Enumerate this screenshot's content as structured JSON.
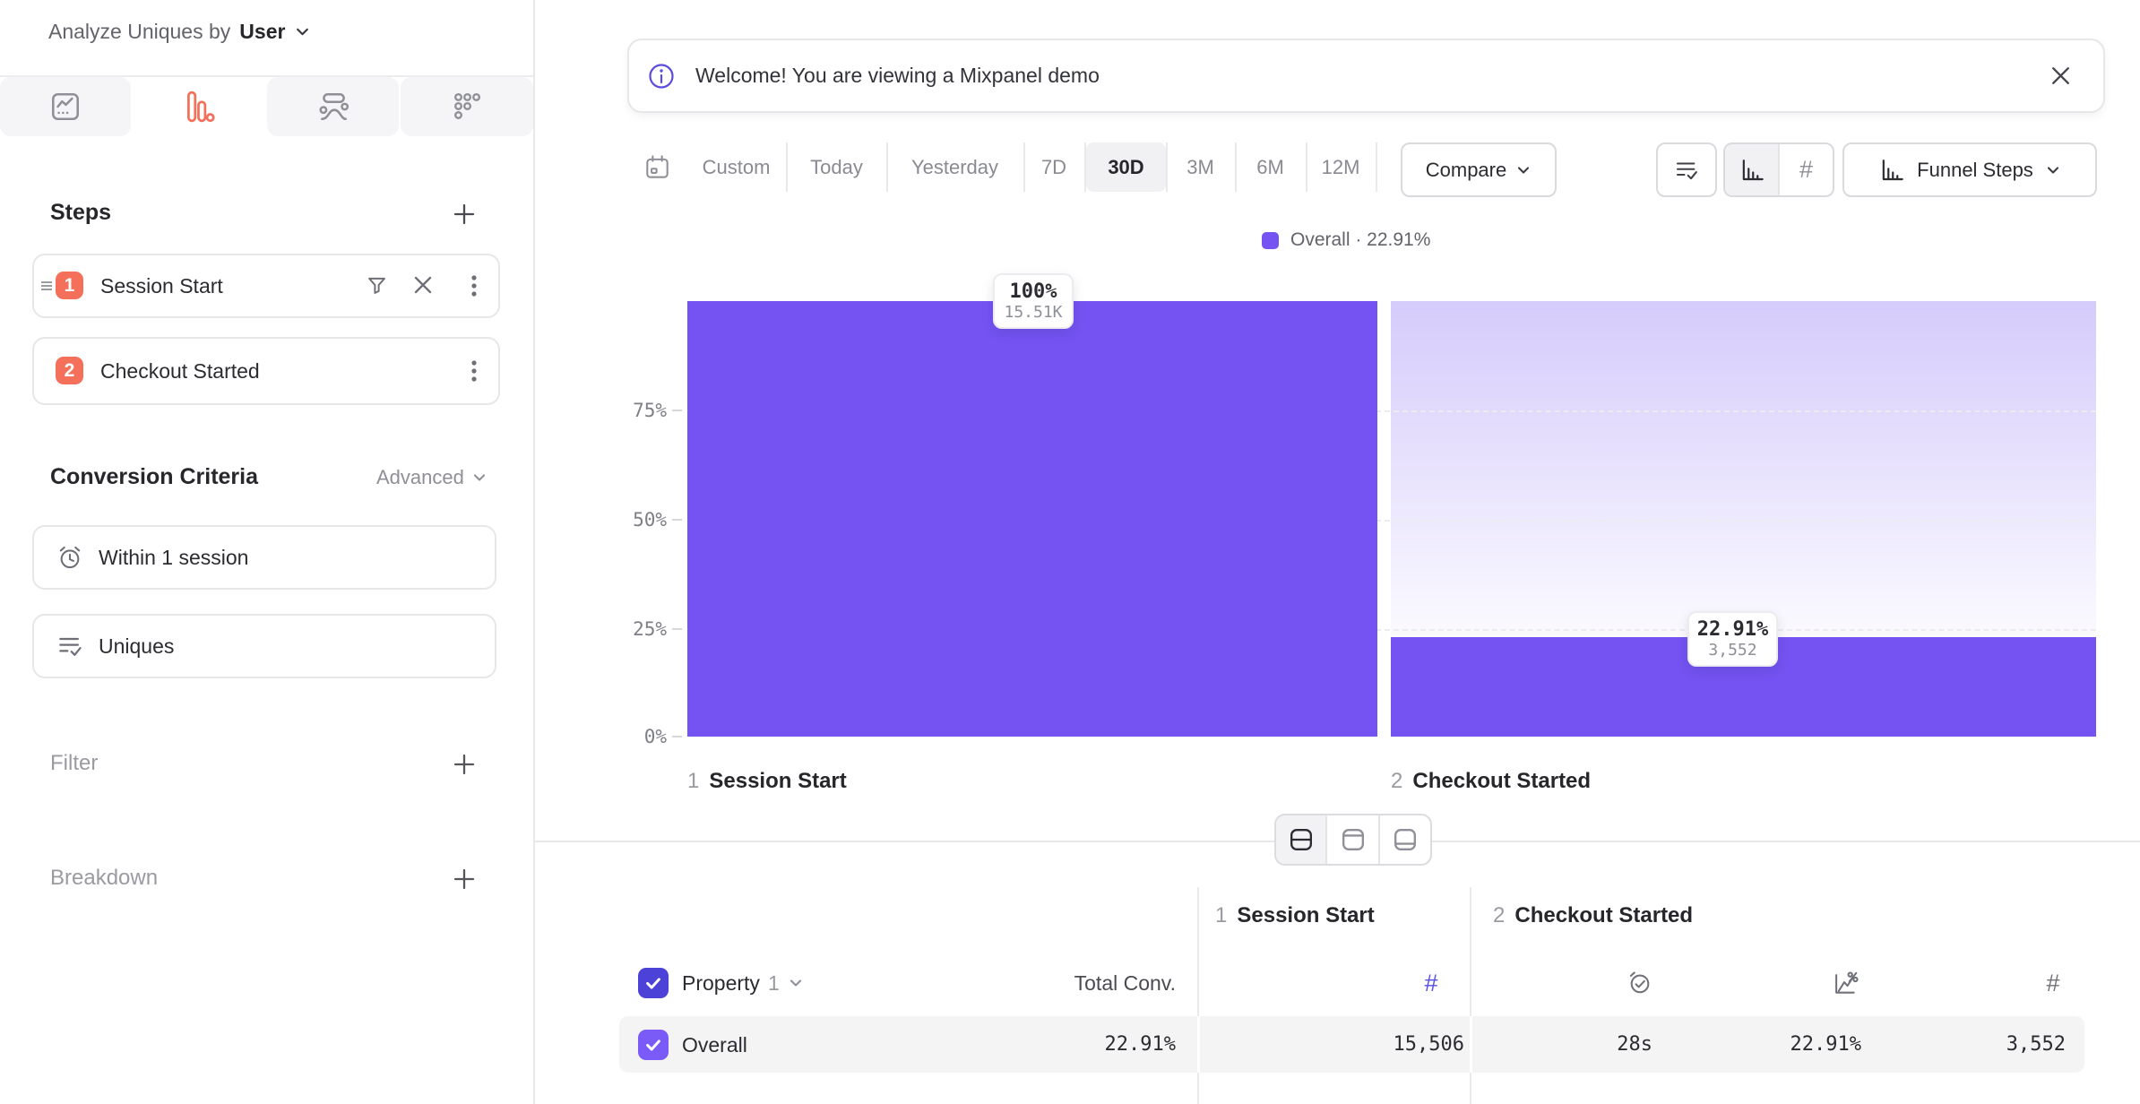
{
  "colors": {
    "purple": "#7453F2",
    "purple-checkbox": "#7B5BF8",
    "indigo-checkbox": "#4C42D8",
    "orange": "#F4705A",
    "info-purple": "#5B4BE0",
    "hash-active": "#564FE6",
    "row-bg": "#F4F4F5"
  },
  "sidebar": {
    "header": {
      "label": "Analyze Uniques by",
      "value": "User"
    },
    "steps": {
      "title": "Steps",
      "items": [
        {
          "index": "1",
          "label": "Session Start"
        },
        {
          "index": "2",
          "label": "Checkout Started"
        }
      ]
    },
    "conversion": {
      "title": "Conversion Criteria",
      "advanced": "Advanced",
      "window": "Within 1 session",
      "counting": "Uniques"
    },
    "filter": {
      "title": "Filter"
    },
    "breakdown": {
      "title": "Breakdown"
    }
  },
  "banner": {
    "message": "Welcome! You are viewing a Mixpanel demo"
  },
  "toolbar": {
    "ranges": [
      "Custom",
      "Today",
      "Yesterday",
      "7D",
      "30D",
      "3M",
      "6M",
      "12M"
    ],
    "selected_range": "30D",
    "compare": "Compare",
    "hash": "#",
    "view_label": "Funnel Steps"
  },
  "chart": {
    "legend": "Overall · 22.91%",
    "yticks": [
      "75%",
      "50%",
      "25%",
      "0%"
    ],
    "steps": [
      {
        "index": "1",
        "label": "Session Start",
        "pct": "100%",
        "count": "15.51K"
      },
      {
        "index": "2",
        "label": "Checkout Started",
        "pct": "22.91%",
        "count": "3,552"
      }
    ]
  },
  "chart_data": {
    "type": "bar",
    "title": "Funnel conversion by step",
    "categories": [
      "1 Session Start",
      "2 Checkout Started"
    ],
    "series": [
      {
        "name": "Overall",
        "values": [
          100,
          22.91
        ]
      }
    ],
    "counts": [
      15506,
      3552
    ],
    "count_labels": [
      "15.51K",
      "3,552"
    ],
    "overall_conversion": "22.91%",
    "ylim": [
      0,
      100
    ],
    "yticks": [
      0,
      25,
      50,
      75
    ],
    "grid": "dashed-horizontal",
    "legend_position": "top-center"
  },
  "table": {
    "groups": [
      {
        "index": "1",
        "label": "Session Start"
      },
      {
        "index": "2",
        "label": "Checkout Started"
      }
    ],
    "property_label": "Property",
    "property_index": "1",
    "total_conv": "Total Conv.",
    "hash": "#",
    "row": {
      "label": "Overall",
      "total_conv": "22.91%",
      "uniques": "15,506",
      "time_to_convert": "28s",
      "conv_rate": "22.91%",
      "converted": "3,552"
    }
  }
}
